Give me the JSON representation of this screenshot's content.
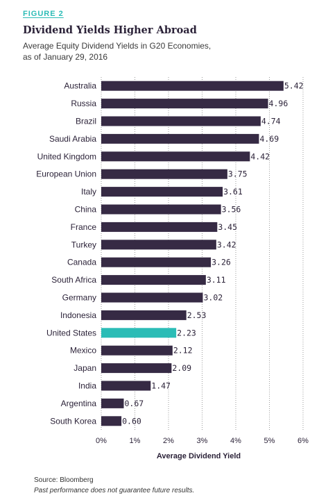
{
  "figure_label": "FIGURE 2",
  "source": "Source: Bloomberg",
  "disclaimer": "Past performance does not guarantee future results.",
  "colors": {
    "bar": "#362a44",
    "highlight": "#2bbcb6",
    "accent": "#2bbcb6",
    "text": "#2b2238"
  },
  "chart_data": {
    "type": "bar",
    "orientation": "horizontal",
    "title": "Dividend Yields Higher Abroad",
    "subtitle_lines": [
      "Average Equity Dividend Yields in G20 Economies,",
      "as of January 29, 2016"
    ],
    "xlabel": "Average Dividend Yield",
    "ylabel": "",
    "xlim": [
      0,
      6
    ],
    "x_ticks": [
      "0%",
      "1%",
      "2%",
      "3%",
      "4%",
      "5%",
      "6%"
    ],
    "grid": "vertical dotted",
    "highlight_category": "United States",
    "categories": [
      "Australia",
      "Russia",
      "Brazil",
      "Saudi Arabia",
      "United Kingdom",
      "European Union",
      "Italy",
      "China",
      "France",
      "Turkey",
      "Canada",
      "South Africa",
      "Germany",
      "Indonesia",
      "United States",
      "Mexico",
      "Japan",
      "India",
      "Argentina",
      "South Korea"
    ],
    "values": [
      5.42,
      4.96,
      4.74,
      4.69,
      4.42,
      3.75,
      3.61,
      3.56,
      3.45,
      3.42,
      3.26,
      3.11,
      3.02,
      2.53,
      2.23,
      2.12,
      2.09,
      1.47,
      0.67,
      0.6
    ],
    "value_labels": [
      "5.42",
      "4.96",
      "4.74",
      "4.69",
      "4.42",
      "3.75",
      "3.61",
      "3.56",
      "3.45",
      "3.42",
      "3.26",
      "3.11",
      "3.02",
      "2.53",
      "2.23",
      "2.12",
      "2.09",
      "1.47",
      "0.67",
      "0.60"
    ]
  }
}
